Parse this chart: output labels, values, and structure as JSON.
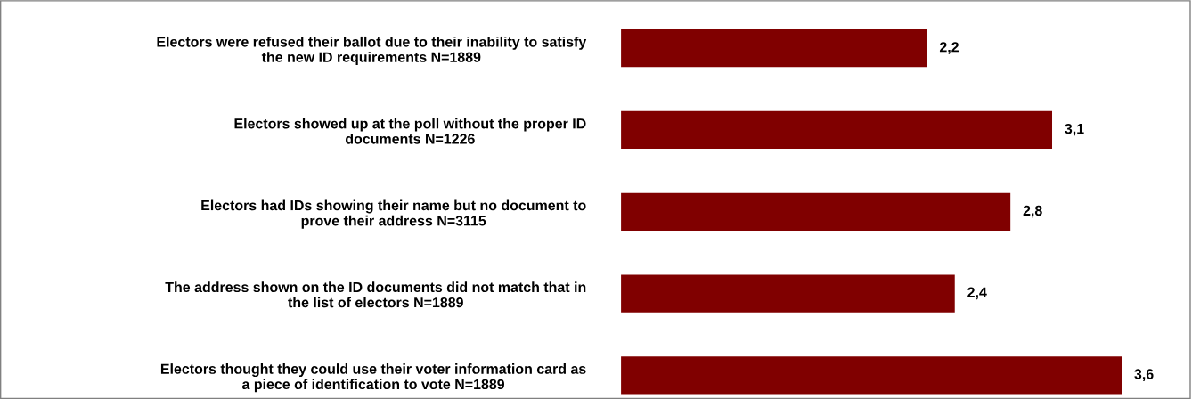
{
  "chart_data": {
    "type": "bar",
    "orientation": "horizontal",
    "categories": [
      "Electors were refused their ballot due to their inability to satisfy\nthe new ID requirements N=1889",
      "Electors showed up at the poll without the proper ID\ndocuments N=1226",
      "Electors had IDs showing their name but no document to\nprove their address N=3115",
      "The address shown on the ID documents did not match that in\nthe list of electors N=1889",
      "Electors thought they could use their voter information card as\na piece of identification to vote N=1889"
    ],
    "values": [
      2.2,
      3.1,
      2.8,
      2.4,
      3.6
    ],
    "value_labels": [
      "2,2",
      "3,1",
      "2,8",
      "2,4",
      "3,6"
    ],
    "color": "#800000"
  }
}
